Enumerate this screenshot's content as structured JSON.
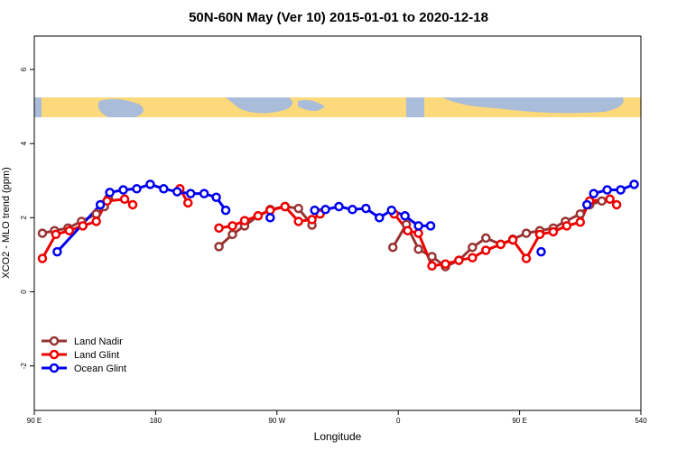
{
  "chart_data": {
    "type": "line",
    "title": "50N-60N May (Ver 10)   2015-01-01 to 2020-12-18",
    "xlabel": "Longitude",
    "ylabel": "XCO2 - MLO trend (ppm)",
    "xlim": [
      90,
      540
    ],
    "ylim": [
      -3.2,
      6.9
    ],
    "xticks": [
      {
        "value": 90,
        "label": "90 E"
      },
      180,
      {
        "value": 270,
        "label": "90 W"
      },
      {
        "value": 360,
        "label": "0"
      },
      {
        "value": 450,
        "label": "90 E"
      },
      540
    ],
    "yticks": [
      -2,
      0,
      2,
      4,
      6
    ],
    "legend": "bottomleft",
    "series": [
      {
        "name": "Land Nadir",
        "color": "#993333",
        "x": [
          96,
          105,
          115,
          125,
          136,
          142,
          145,
          180,
          227,
          237,
          246,
          256,
          265,
          276,
          286,
          296,
          320,
          356,
          366,
          375,
          385,
          395,
          405,
          415,
          425,
          436,
          445,
          455,
          465,
          475,
          484,
          495,
          502,
          511
        ],
        "values": [
          1.58,
          1.65,
          1.72,
          1.9,
          2.1,
          2.3,
          2.52,
          null,
          1.22,
          1.55,
          1.78,
          2.05,
          2.22,
          2.3,
          2.25,
          1.8,
          null,
          1.2,
          1.82,
          1.15,
          0.95,
          0.68,
          0.85,
          1.2,
          1.45,
          1.28,
          1.42,
          1.58,
          1.65,
          1.72,
          1.9,
          2.1,
          2.35,
          2.45
        ]
      },
      {
        "name": "Land Glint",
        "color": "#ee0000",
        "x": [
          96,
          106,
          116,
          126,
          136,
          144,
          157,
          163,
          170,
          198,
          204,
          220,
          227,
          237,
          246,
          256,
          265,
          276,
          286,
          296,
          302,
          330,
          357,
          367,
          375,
          385,
          395,
          405,
          415,
          425,
          436,
          445,
          455,
          465,
          475,
          485,
          495,
          502,
          517,
          522
        ],
        "values": [
          0.9,
          1.55,
          1.65,
          1.78,
          1.9,
          2.45,
          2.5,
          2.35,
          null,
          2.78,
          2.4,
          null,
          1.72,
          1.78,
          1.92,
          2.05,
          2.2,
          2.3,
          1.9,
          1.95,
          2.1,
          null,
          2.1,
          1.65,
          1.58,
          0.7,
          0.75,
          0.85,
          0.92,
          1.12,
          1.28,
          1.4,
          0.9,
          1.55,
          1.62,
          1.78,
          1.88,
          2.45,
          2.5,
          2.35
        ]
      },
      {
        "name": "Ocean Glint",
        "color": "#0000ee",
        "x": [
          107,
          139,
          146,
          156,
          166,
          176,
          186,
          196,
          206,
          216,
          225,
          232,
          250,
          265,
          280,
          298,
          306,
          316,
          326,
          336,
          346,
          355,
          365,
          375,
          384,
          420,
          466,
          480,
          500,
          505,
          515,
          525,
          535
        ],
        "values": [
          1.08,
          2.35,
          2.68,
          2.75,
          2.78,
          2.9,
          2.78,
          2.7,
          2.65,
          2.65,
          2.55,
          2.2,
          null,
          2.0,
          null,
          2.2,
          2.22,
          2.3,
          2.22,
          2.25,
          2.0,
          2.2,
          2.05,
          1.78,
          1.78,
          null,
          1.08,
          null,
          2.35,
          2.65,
          2.75,
          2.75,
          2.9
        ]
      }
    ]
  }
}
